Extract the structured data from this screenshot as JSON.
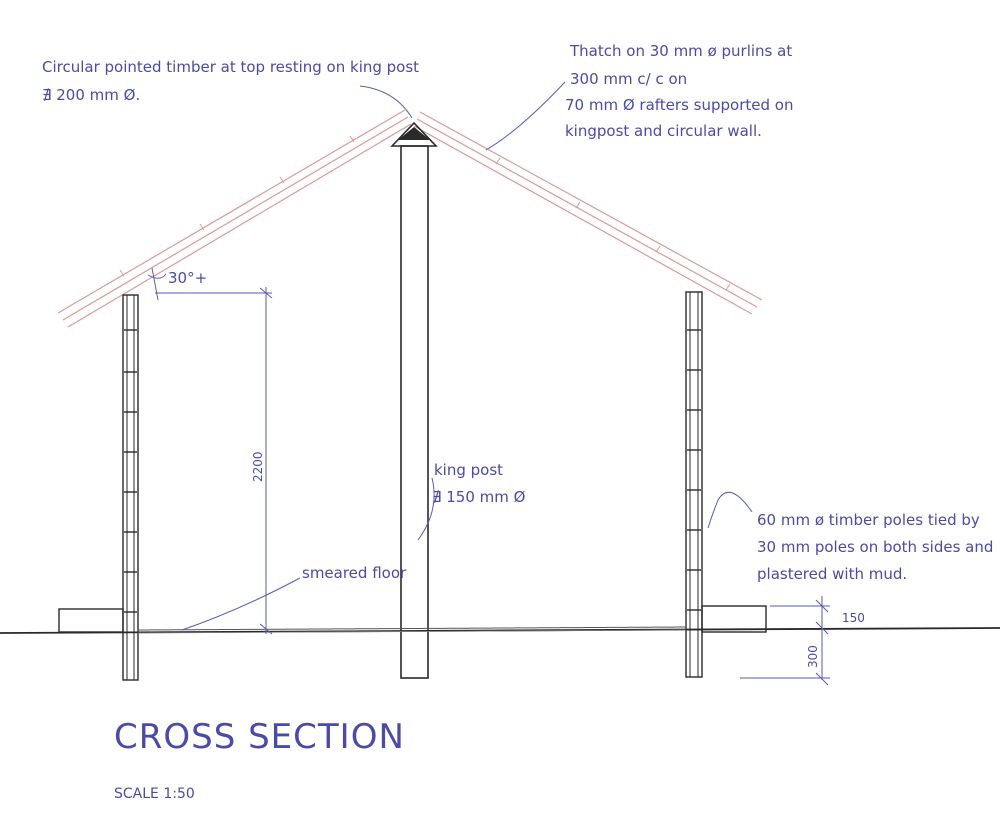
{
  "drawing": {
    "title": "CROSS SECTION",
    "scale": "SCALE 1:50",
    "colors": {
      "ink": "#2a2a2a",
      "annotation": "#4a4aa8",
      "rafter": "#d99a9a"
    },
    "annotations": {
      "top_timber": [
        "Circular pointed timber at top resting on king post",
        "∄ 200 mm Ø."
      ],
      "thatch": [
        "Thatch on 30 mm ø purlins at",
        "300 mm c/ c on",
        "70 mm Ø  rafters supported on",
        "kingpost and circular wall."
      ],
      "roof_angle": "30°+",
      "wall_height": "2200",
      "king_post": [
        "king post",
        "∄ 150 mm Ø"
      ],
      "floor": "smeared floor",
      "poles": [
        "60 mm ø timber poles tied by",
        "30 mm poles on both sides and",
        "plastered with mud."
      ],
      "plinth_height": "150",
      "foundation_depth": "300"
    }
  }
}
